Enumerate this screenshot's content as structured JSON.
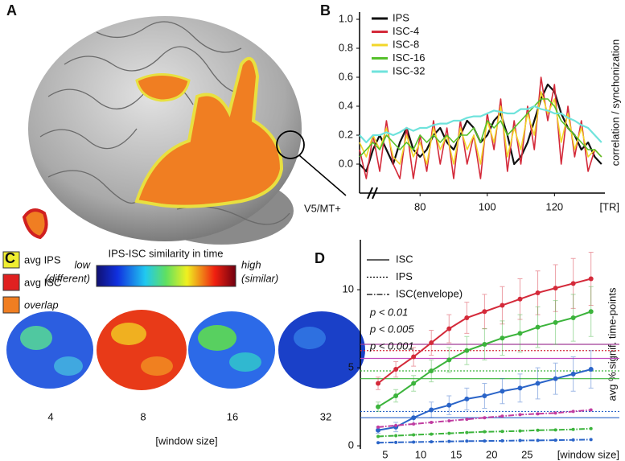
{
  "panel_a": {
    "panel_label": "A",
    "legend": [
      "avg IPS",
      "avg ISC",
      "overlap"
    ],
    "annotation": "V5/MT+"
  },
  "panel_c": {
    "panel_label": "C",
    "colorbar_title": "IPS-ISC similarity in time",
    "low_label": "low",
    "low_sublabel": "(different)",
    "high_label": "high",
    "high_sublabel": "(similar)",
    "window_sizes": [
      "4",
      "8",
      "16",
      "32"
    ],
    "x_label": "[window size]"
  },
  "chart_data": [
    {
      "type": "line",
      "panel_label": "B",
      "y_label": "correlation / synchonization",
      "x_unit": "[TR]",
      "x": [
        62,
        64,
        66,
        68,
        70,
        72,
        74,
        76,
        78,
        80,
        82,
        84,
        86,
        88,
        90,
        92,
        94,
        96,
        98,
        100,
        102,
        104,
        106,
        108,
        110,
        112,
        114,
        116,
        118,
        120,
        122,
        124,
        126,
        128,
        130,
        132,
        134
      ],
      "xlim": [
        62,
        135
      ],
      "xticks": [
        80,
        100,
        120
      ],
      "ylim": [
        -0.2,
        1.05
      ],
      "yticks": [
        {
          "value": 0,
          "label": "0.0"
        },
        0.2,
        0.4,
        0.6,
        0.8,
        {
          "value": 1,
          "label": "1.0"
        }
      ],
      "legend": "upper left",
      "series": [
        {
          "name": "IPS",
          "color": "#111111",
          "width": 2.2,
          "values": [
            0.0,
            -0.05,
            0.1,
            0.2,
            0.1,
            0.0,
            0.15,
            0.25,
            0.1,
            0.05,
            0.1,
            0.2,
            0.25,
            0.15,
            0.1,
            0.2,
            0.3,
            0.25,
            0.15,
            0.2,
            0.3,
            0.35,
            0.2,
            0.0,
            0.05,
            0.15,
            0.3,
            0.45,
            0.55,
            0.5,
            0.35,
            0.25,
            0.2,
            0.1,
            0.15,
            0.05,
            0.0
          ]
        },
        {
          "name": "ISC-4",
          "color": "#d42a3a",
          "width": 1.6,
          "values": [
            0.1,
            -0.1,
            0.2,
            -0.05,
            0.3,
            0.0,
            -0.1,
            0.25,
            -0.1,
            0.2,
            -0.05,
            0.3,
            0.0,
            0.25,
            -0.1,
            0.3,
            0.0,
            0.2,
            -0.1,
            0.35,
            0.1,
            0.45,
            -0.05,
            0.3,
            0.0,
            0.4,
            0.1,
            0.6,
            0.3,
            0.55,
            0.0,
            0.4,
            0.05,
            0.3,
            -0.05,
            0.1,
            0.05
          ]
        },
        {
          "name": "ISC-8",
          "color": "#f2d62a",
          "width": 1.6,
          "values": [
            0.15,
            0.05,
            0.2,
            0.1,
            0.25,
            0.05,
            0.0,
            0.2,
            0.05,
            0.15,
            0.0,
            0.25,
            0.1,
            0.2,
            0.0,
            0.25,
            0.1,
            0.2,
            0.0,
            0.3,
            0.15,
            0.4,
            0.05,
            0.25,
            0.1,
            0.35,
            0.2,
            0.5,
            0.35,
            0.45,
            0.15,
            0.35,
            0.1,
            0.25,
            0.05,
            0.1,
            0.05
          ]
        },
        {
          "name": "ISC-16",
          "color": "#55c02a",
          "width": 1.6,
          "values": [
            0.05,
            0.1,
            0.15,
            0.1,
            0.2,
            0.15,
            0.1,
            0.15,
            0.1,
            0.2,
            0.15,
            0.2,
            0.15,
            0.2,
            0.15,
            0.2,
            0.2,
            0.25,
            0.15,
            0.3,
            0.25,
            0.3,
            0.2,
            0.25,
            0.3,
            0.35,
            0.4,
            0.45,
            0.45,
            0.4,
            0.3,
            0.25,
            0.2,
            0.15,
            0.1,
            0.1,
            0.05
          ]
        },
        {
          "name": "ISC-32",
          "color": "#6fe3dc",
          "width": 2.2,
          "values": [
            0.2,
            0.15,
            0.2,
            0.2,
            0.22,
            0.2,
            0.22,
            0.25,
            0.23,
            0.25,
            0.25,
            0.27,
            0.28,
            0.28,
            0.3,
            0.3,
            0.32,
            0.33,
            0.33,
            0.35,
            0.37,
            0.36,
            0.35,
            0.35,
            0.38,
            0.38,
            0.4,
            0.38,
            0.37,
            0.35,
            0.35,
            0.32,
            0.3,
            0.27,
            0.25,
            0.2,
            0.15
          ]
        }
      ]
    },
    {
      "type": "line",
      "panel_label": "D",
      "y_label": "avg % signif. time-points",
      "x_unit": "[window size]",
      "x": [
        4,
        6.5,
        9,
        11.5,
        14,
        16.5,
        19,
        21.5,
        24,
        26.5,
        29,
        31.5,
        34
      ],
      "xlim": [
        1.5,
        38
      ],
      "xticks": [
        5,
        10,
        15,
        20,
        25
      ],
      "ylim": [
        -0.2,
        13.2
      ],
      "yticks": [
        0,
        5,
        10
      ],
      "markers": true,
      "linestyle_legend": [
        {
          "label": "ISC",
          "style": "solid"
        },
        {
          "label": "IPS",
          "style": "dotted"
        },
        {
          "label": "ISC(envelope)",
          "style": "dashdot"
        }
      ],
      "significance_legend": [
        {
          "label": "p < 0.01",
          "color": "#d42a3a"
        },
        {
          "label": "p < 0.005",
          "color": "#3cb43c"
        },
        {
          "label": "p < 0.001",
          "color": "#2a64c8"
        }
      ],
      "reference_lines": [
        {
          "value": 6.5,
          "color": "#a03c96",
          "style": "solid"
        },
        {
          "value": 6.1,
          "color": "#d42a3a",
          "style": "dotted"
        },
        {
          "value": 5.6,
          "color": "#c04cc0",
          "style": "solid"
        },
        {
          "value": 4.8,
          "color": "#3cb43c",
          "style": "dotted"
        },
        {
          "value": 4.3,
          "color": "#3cb43c",
          "style": "solid"
        },
        {
          "value": 2.2,
          "color": "#2a64c8",
          "style": "dotted"
        },
        {
          "value": 1.8,
          "color": "#2a64c8",
          "style": "solid"
        }
      ],
      "series": [
        {
          "color": "#d42a3a",
          "style": "solid",
          "values": [
            4.0,
            4.9,
            5.7,
            6.6,
            7.5,
            8.2,
            8.6,
            9.0,
            9.4,
            9.8,
            10.1,
            10.4,
            10.7
          ],
          "errors": [
            0.4,
            0.5,
            0.6,
            0.8,
            0.9,
            1.0,
            1.1,
            1.2,
            1.3,
            1.4,
            1.5,
            1.6,
            1.7
          ]
        },
        {
          "color": "#3cb43c",
          "style": "solid",
          "values": [
            2.5,
            3.2,
            4.0,
            4.8,
            5.5,
            6.1,
            6.5,
            6.9,
            7.2,
            7.6,
            7.9,
            8.2,
            8.6
          ],
          "errors": [
            0.3,
            0.4,
            0.5,
            0.7,
            0.8,
            0.9,
            1.0,
            1.1,
            1.2,
            1.3,
            1.4,
            1.5,
            1.6
          ]
        },
        {
          "color": "#2a64c8",
          "style": "solid",
          "values": [
            1.0,
            1.2,
            1.8,
            2.3,
            2.6,
            3.0,
            3.2,
            3.5,
            3.7,
            4.0,
            4.3,
            4.6,
            4.9
          ],
          "errors": [
            0.2,
            0.3,
            0.4,
            0.5,
            0.6,
            0.7,
            0.8,
            0.8,
            0.9,
            1.0,
            1.0,
            1.1,
            1.2
          ]
        },
        {
          "color": "#c03ca0",
          "style": "dashdot",
          "values": [
            1.2,
            1.3,
            1.4,
            1.5,
            1.6,
            1.7,
            1.8,
            1.9,
            2.0,
            2.05,
            2.1,
            2.2,
            2.3
          ]
        },
        {
          "color": "#3cb43c",
          "style": "dashdot",
          "values": [
            0.6,
            0.65,
            0.7,
            0.75,
            0.8,
            0.85,
            0.9,
            0.92,
            0.95,
            1.0,
            1.02,
            1.05,
            1.1
          ]
        },
        {
          "color": "#2a64c8",
          "style": "dashdot",
          "values": [
            0.2,
            0.22,
            0.24,
            0.26,
            0.28,
            0.3,
            0.31,
            0.32,
            0.34,
            0.35,
            0.36,
            0.38,
            0.4
          ]
        }
      ]
    }
  ]
}
